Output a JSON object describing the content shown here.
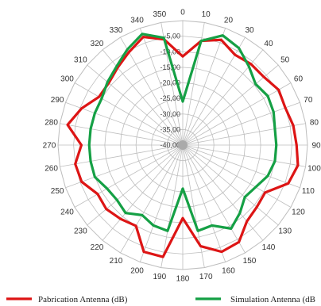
{
  "chart_data": {
    "type": "radar",
    "angle_unit": "degrees",
    "angles": [
      0,
      10,
      20,
      30,
      40,
      50,
      60,
      70,
      80,
      90,
      100,
      110,
      120,
      130,
      140,
      150,
      160,
      170,
      180,
      190,
      200,
      210,
      220,
      230,
      240,
      250,
      260,
      270,
      280,
      290,
      300,
      310,
      320,
      330,
      340,
      350
    ],
    "angle_labels": [
      "0",
      "10",
      "20",
      "30",
      "40",
      "50",
      "60",
      "70",
      "80",
      "90",
      "100",
      "110",
      "120",
      "130",
      "140",
      "150",
      "160",
      "170",
      "180",
      "190",
      "200",
      "210",
      "220",
      "230",
      "240",
      "250",
      "260",
      "270",
      "280",
      "290",
      "300",
      "310",
      "320",
      "330",
      "340",
      "350"
    ],
    "radial_ticks": [
      "-40,00",
      "-35,00",
      "-30,00",
      "-25,00",
      "-20,00",
      "-15,00",
      "-10,00",
      "-5,00"
    ],
    "rlim": [
      -40,
      0
    ],
    "series": [
      {
        "name": "Pabrication Antenna (dB)",
        "color": "#dd1515",
        "values": [
          -11.5,
          -6,
          -4,
          -6.5,
          -6,
          -6,
          -4.5,
          -5,
          -4,
          -3.5,
          -2.5,
          -4,
          -9.5,
          -9,
          -8,
          -4,
          -3.5,
          -7,
          -16.5,
          -3.5,
          -3.5,
          -10,
          -9,
          -8,
          -8.5,
          -5.5,
          -5,
          -7.5,
          -2.5,
          -5.5,
          -9,
          -9,
          -7.5,
          -5.5,
          -3,
          -5.5
        ]
      },
      {
        "name": "Simulation Antenna (dB",
        "color": "#15a045",
        "values": [
          -26,
          -6,
          -2.5,
          -4,
          -7,
          -9.5,
          -8.5,
          -9,
          -10,
          -10,
          -10,
          -11,
          -13,
          -14,
          -11.5,
          -9,
          -12.5,
          -12,
          -26,
          -12,
          -12.5,
          -14,
          -11.5,
          -12.5,
          -12,
          -10,
          -10,
          -10,
          -10,
          -10,
          -10,
          -8.5,
          -7,
          -4.5,
          -2,
          -5
        ]
      }
    ],
    "grid": true
  }
}
